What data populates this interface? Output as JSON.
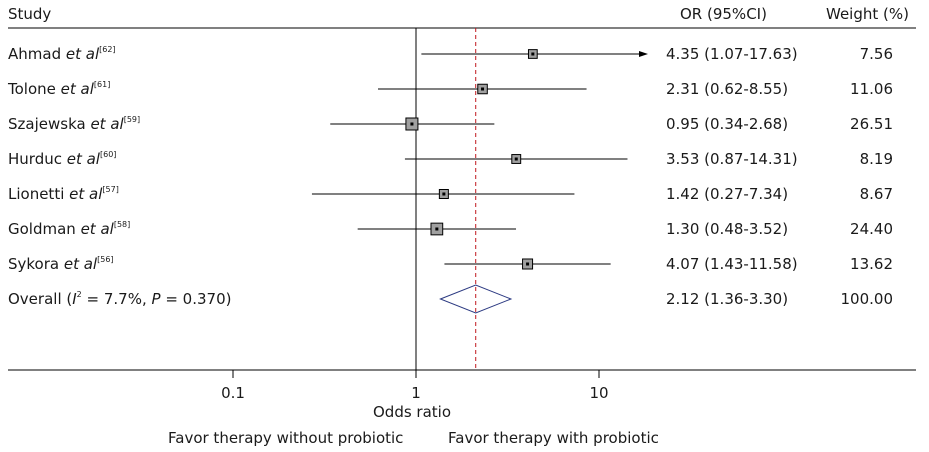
{
  "chart_data": {
    "type": "forest",
    "headers": {
      "study": "Study",
      "or": "OR (95%CI)",
      "weight": "Weight (%)"
    },
    "x_scale": "log",
    "x_ticks": [
      0.1,
      1,
      10
    ],
    "x_tick_labels": [
      "0.1",
      "1",
      "10"
    ],
    "xlabel": "Odds ratio",
    "favor_left": "Favor therapy without probiotic",
    "favor_right": "Favor therapy with probiotic",
    "null_line": 1,
    "overall_line": 2.12,
    "studies": [
      {
        "name": "Ahmad",
        "etal": "et al",
        "ref": "[62]",
        "or": 4.35,
        "lo": 1.07,
        "hi": 17.63,
        "or_text": "4.35 (1.07-17.63)",
        "weight": 7.56,
        "weight_text": "7.56",
        "arrow_right": true
      },
      {
        "name": "Tolone",
        "etal": "et al",
        "ref": "[61]",
        "or": 2.31,
        "lo": 0.62,
        "hi": 8.55,
        "or_text": "2.31 (0.62-8.55)",
        "weight": 11.06,
        "weight_text": "11.06",
        "arrow_right": false
      },
      {
        "name": "Szajewska",
        "etal": "et al",
        "ref": "[59]",
        "or": 0.95,
        "lo": 0.34,
        "hi": 2.68,
        "or_text": "0.95 (0.34-2.68)",
        "weight": 26.51,
        "weight_text": "26.51",
        "arrow_right": false
      },
      {
        "name": "Hurduc",
        "etal": "et al",
        "ref": "[60]",
        "or": 3.53,
        "lo": 0.87,
        "hi": 14.31,
        "or_text": "3.53 (0.87-14.31)",
        "weight": 8.19,
        "weight_text": "8.19",
        "arrow_right": false
      },
      {
        "name": "Lionetti",
        "etal": "et al",
        "ref": "[57]",
        "or": 1.42,
        "lo": 0.27,
        "hi": 7.34,
        "or_text": "1.42 (0.27-7.34)",
        "weight": 8.67,
        "weight_text": "8.67",
        "arrow_right": false
      },
      {
        "name": "Goldman",
        "etal": "et al",
        "ref": "[58]",
        "or": 1.3,
        "lo": 0.48,
        "hi": 3.52,
        "or_text": "1.30 (0.48-3.52)",
        "weight": 24.4,
        "weight_text": "24.40",
        "arrow_right": false
      },
      {
        "name": "Sykora",
        "etal": "et al",
        "ref": "[56]",
        "or": 4.07,
        "lo": 1.43,
        "hi": 11.58,
        "or_text": "4.07 (1.43-11.58)",
        "weight": 13.62,
        "weight_text": "13.62",
        "arrow_right": false
      }
    ],
    "overall": {
      "label_prefix": "Overall (",
      "i2_symbol": "I",
      "i2_sup": "2",
      "i2_value": " = 7.7%, ",
      "p_symbol": "P",
      "p_value": " = 0.370)",
      "or": 2.12,
      "lo": 1.36,
      "hi": 3.3,
      "or_text": "2.12 (1.36-3.30)",
      "weight_text": "100.00"
    },
    "colors": {
      "overall_line": "#c0181e",
      "diamond": "#2c3a82",
      "box_fill": "#a0a0a0",
      "line": "#000000"
    }
  }
}
